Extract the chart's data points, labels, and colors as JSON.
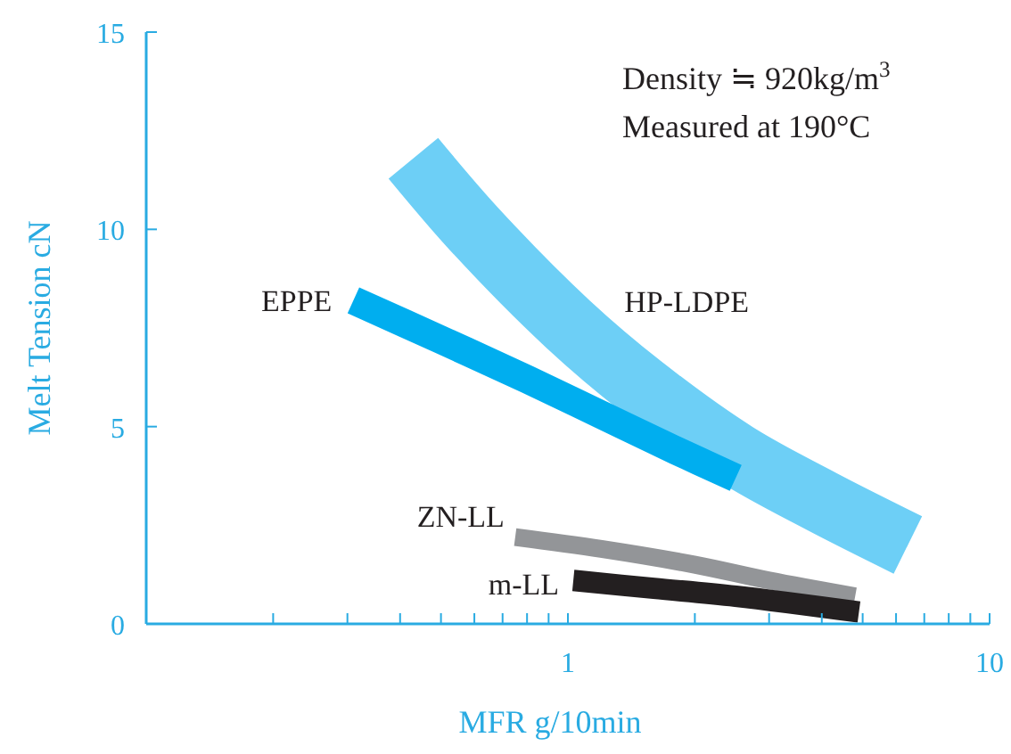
{
  "chart_data": {
    "type": "line",
    "xlabel": "MFR g/10min",
    "ylabel": "Melt Tension cN",
    "log": "x",
    "xlim": [
      0.1,
      10
    ],
    "ylim": [
      0,
      15
    ],
    "xticks": [
      {
        "value": 0.1,
        "label": null
      },
      {
        "value": 0.2,
        "label": null
      },
      {
        "value": 0.3,
        "label": null
      },
      {
        "value": 0.4,
        "label": null
      },
      {
        "value": 0.5,
        "label": null
      },
      {
        "value": 0.6,
        "label": null
      },
      {
        "value": 0.7,
        "label": null
      },
      {
        "value": 0.8,
        "label": null
      },
      {
        "value": 0.9,
        "label": null
      },
      1,
      {
        "value": 2,
        "label": null
      },
      {
        "value": 3,
        "label": null
      },
      {
        "value": 4,
        "label": null
      },
      {
        "value": 5,
        "label": null
      },
      {
        "value": 6,
        "label": null
      },
      {
        "value": 7,
        "label": null
      },
      {
        "value": 8,
        "label": null
      },
      {
        "value": 9,
        "label": null
      },
      10
    ],
    "yticks": [
      0,
      5,
      10,
      15
    ],
    "marker": "none",
    "line_style": "solid",
    "annotations": [
      "Density ≒ 920kg/m$^{3}$",
      "Measured at 190°C"
    ],
    "series": [
      {
        "name": "HP-LDPE",
        "color": "#6dcff6",
        "x": [
          0.43,
          0.6,
          1,
          1.5,
          2.5,
          4,
          6.4
        ],
        "values": [
          11.8,
          10.0,
          7.6,
          6.0,
          4.3,
          3.1,
          2.0
        ]
      },
      {
        "name": "EPPE",
        "color": "#00aeef",
        "x": [
          0.31,
          0.5,
          0.8,
          1.2,
          1.8,
          2.5
        ],
        "values": [
          8.2,
          7.2,
          6.2,
          5.3,
          4.4,
          3.7
        ]
      },
      {
        "name": "ZN-LL",
        "color": "#939598",
        "x": [
          0.75,
          1.2,
          2,
          3,
          4.8
        ],
        "values": [
          2.2,
          1.9,
          1.5,
          1.1,
          0.7
        ]
      },
      {
        "name": "m-LL",
        "color": "#231f20",
        "x": [
          1.03,
          1.6,
          2.5,
          4.9
        ],
        "values": [
          1.1,
          0.9,
          0.7,
          0.3
        ]
      }
    ]
  }
}
